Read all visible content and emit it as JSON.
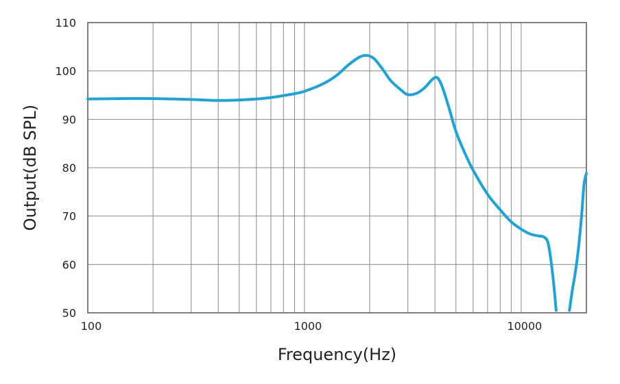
{
  "chart_data": {
    "type": "line",
    "x_scale": "log",
    "y_scale": "linear",
    "xlim": [
      100,
      20000
    ],
    "ylim": [
      50,
      110
    ],
    "xlabel": "Frequency(Hz)",
    "ylabel": "Output(dB SPL)",
    "x_tick_labels": [
      "100",
      "1000",
      "10000"
    ],
    "y_tick_labels": [
      "110",
      "100",
      "90",
      "80",
      "70",
      "60",
      "50"
    ],
    "grid": true,
    "legend": "none",
    "line_color": "#1aa3dc",
    "series": [
      {
        "points": [
          [
            100,
            94.2
          ],
          [
            150,
            94.3
          ],
          [
            200,
            94.3
          ],
          [
            300,
            94.1
          ],
          [
            400,
            93.9
          ],
          [
            500,
            94.0
          ],
          [
            600,
            94.2
          ],
          [
            700,
            94.5
          ],
          [
            800,
            94.9
          ],
          [
            900,
            95.3
          ],
          [
            1000,
            95.8
          ],
          [
            1200,
            97.2
          ],
          [
            1400,
            99.0
          ],
          [
            1600,
            101.3
          ],
          [
            1800,
            102.9
          ],
          [
            1950,
            103.2
          ],
          [
            2100,
            102.5
          ],
          [
            2300,
            100.3
          ],
          [
            2500,
            98.0
          ],
          [
            2800,
            96.0
          ],
          [
            3000,
            95.1
          ],
          [
            3300,
            95.4
          ],
          [
            3600,
            96.6
          ],
          [
            3900,
            98.3
          ],
          [
            4100,
            98.6
          ],
          [
            4300,
            97.0
          ],
          [
            4600,
            93.0
          ],
          [
            5000,
            87.5
          ],
          [
            5500,
            83.0
          ],
          [
            6000,
            79.5
          ],
          [
            7000,
            74.5
          ],
          [
            8000,
            71.3
          ],
          [
            9000,
            68.8
          ],
          [
            10000,
            67.3
          ],
          [
            11000,
            66.3
          ],
          [
            12000,
            65.9
          ],
          [
            12700,
            65.7
          ],
          [
            13300,
            64.5
          ],
          [
            13800,
            60.0
          ],
          [
            14200,
            55.0
          ],
          [
            14500,
            50.5
          ]
        ]
      },
      {
        "points": [
          [
            16700,
            50.5
          ],
          [
            17200,
            54.5
          ],
          [
            17800,
            58.5
          ],
          [
            18400,
            63.5
          ],
          [
            19000,
            70.0
          ],
          [
            19500,
            76.5
          ],
          [
            20000,
            78.8
          ]
        ]
      }
    ]
  }
}
